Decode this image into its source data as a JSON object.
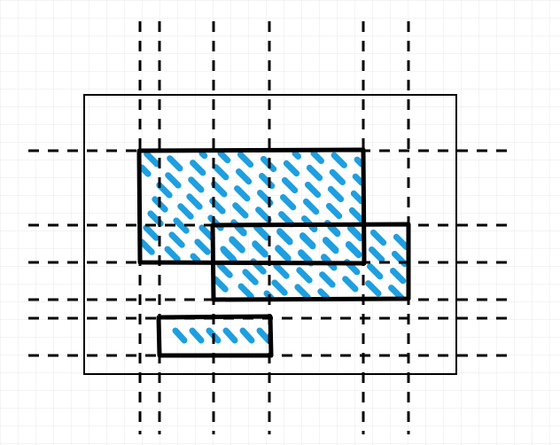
{
  "canvas": {
    "background": "#ffffff",
    "grid_color": "#e6e6e6",
    "grid_visible": true
  },
  "colors": {
    "stroke": "#000000",
    "hachure": "#1e9fe0",
    "guide": "#000000"
  },
  "diagram": {
    "type": "rectangle-packing-with-cut-lines",
    "boundary_count": 1,
    "rectangle_count": 3,
    "vertical_guide_count": 6,
    "horizontal_guide_count": 6,
    "fill_style": "hachure"
  }
}
